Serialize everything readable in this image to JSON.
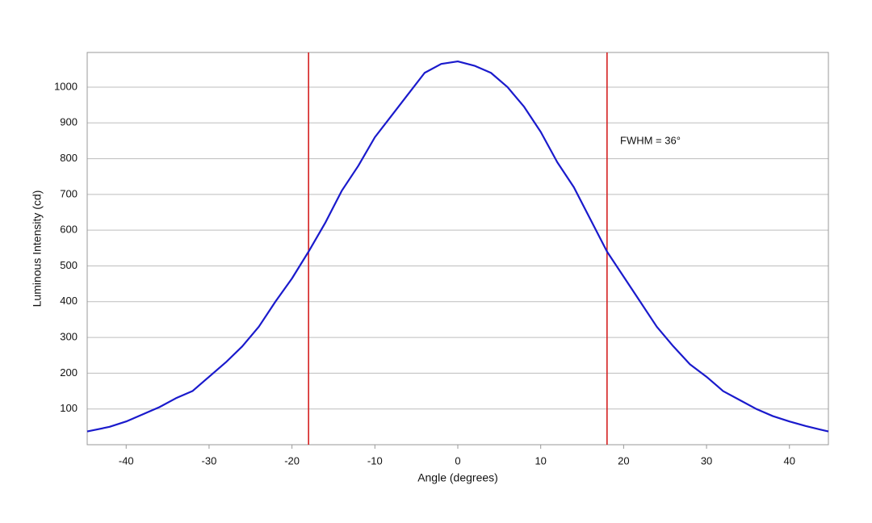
{
  "chart_data": {
    "type": "line",
    "x_label": "Angle (degrees)",
    "y_label": "Luminous Intensity (cd)",
    "annotation": "FWHM = 36°",
    "x": [
      -44.7,
      -42,
      -40,
      -38,
      -36,
      -34,
      -32,
      -30,
      -28,
      -26,
      -24,
      -22,
      -20,
      -18,
      -16,
      -14,
      -12,
      -10,
      -8,
      -6,
      -4,
      -2,
      0,
      2,
      4,
      6,
      8,
      10,
      12,
      14,
      16,
      18,
      20,
      22,
      24,
      26,
      28,
      30,
      32,
      34,
      36,
      38,
      40,
      42,
      44.7
    ],
    "series": [
      {
        "color": "#1a1acc",
        "values": [
          37,
          50,
          65,
          85,
          105,
          130,
          150,
          190,
          230,
          275,
          330,
          400,
          465,
          540,
          620,
          710,
          780,
          860,
          920,
          980,
          1040,
          1065,
          1072,
          1060,
          1040,
          1000,
          945,
          875,
          790,
          720,
          630,
          540,
          470,
          400,
          330,
          275,
          225,
          190,
          150,
          125,
          100,
          80,
          65,
          52,
          37
        ]
      }
    ],
    "vlines": [
      -18,
      18
    ],
    "vline_color": "#d42020",
    "xlim": [
      -44.7,
      44.7
    ],
    "ylim": [
      0,
      1097
    ],
    "xticks": [
      -40,
      -30,
      -20,
      -10,
      0,
      10,
      20,
      30,
      40
    ],
    "yticks": [
      100,
      200,
      300,
      400,
      500,
      600,
      700,
      800,
      900,
      1000
    ],
    "grid": true
  }
}
